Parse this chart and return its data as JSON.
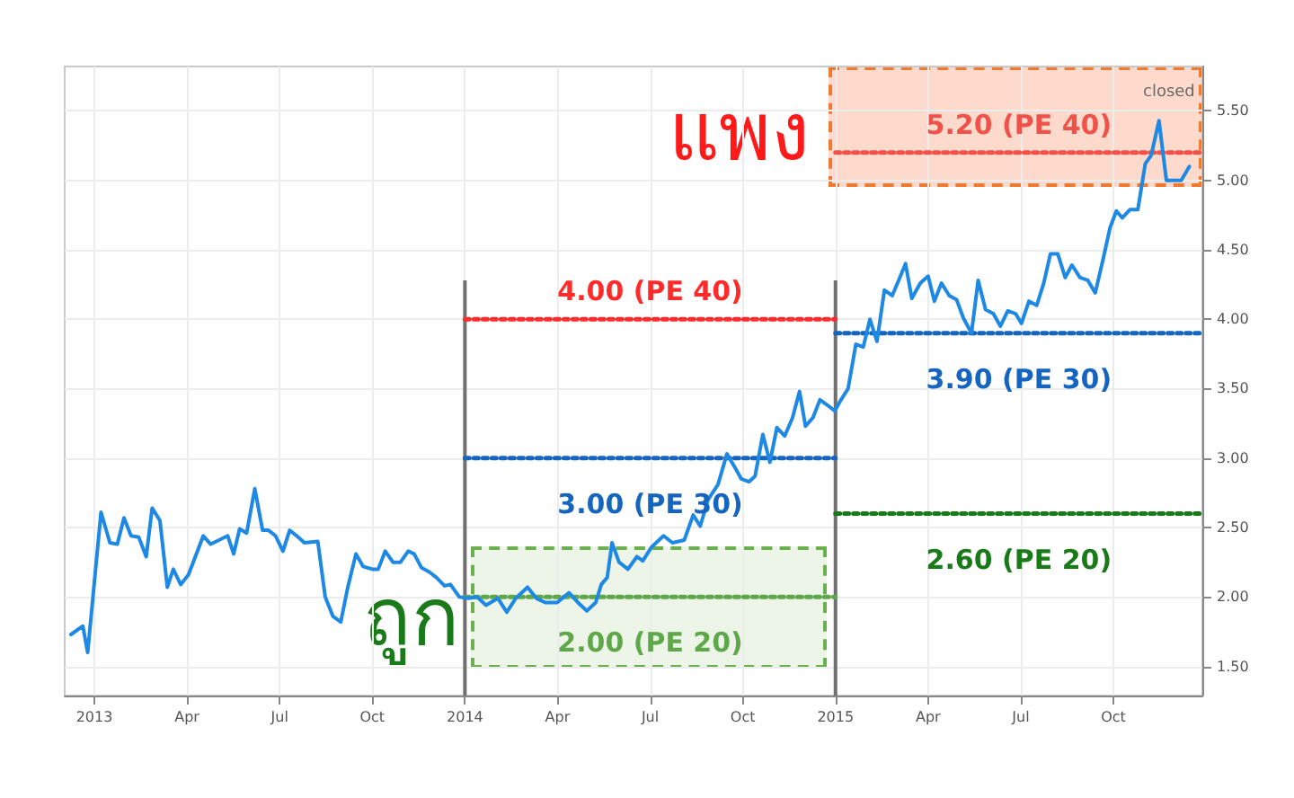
{
  "chart_data": {
    "type": "line",
    "annotations": [
      "แพง",
      "ถูก",
      "closed"
    ],
    "xlim": [
      2012.92,
      2015.99
    ],
    "xticks": [
      {
        "value": 2013,
        "label": "2013"
      },
      {
        "value": 2013.25,
        "label": "Apr"
      },
      {
        "value": 2013.5,
        "label": "Jul"
      },
      {
        "value": 2013.75,
        "label": "Oct"
      },
      {
        "value": 2014,
        "label": "2014"
      },
      {
        "value": 2014.25,
        "label": "Apr"
      },
      {
        "value": 2014.5,
        "label": "Jul"
      },
      {
        "value": 2014.75,
        "label": "Oct"
      },
      {
        "value": 2015,
        "label": "2015"
      },
      {
        "value": 2015.25,
        "label": "Apr"
      },
      {
        "value": 2015.5,
        "label": "Jul"
      },
      {
        "value": 2015.75,
        "label": "Oct"
      }
    ],
    "ylim": [
      1.29,
      5.82
    ],
    "yticks": [
      {
        "value": 1.5,
        "label": "1.50"
      },
      {
        "value": 2,
        "label": "2.00"
      },
      {
        "value": 2.5,
        "label": "2.50"
      },
      {
        "value": 3,
        "label": "3.00"
      },
      {
        "value": 3.5,
        "label": "3.50"
      },
      {
        "value": 4,
        "label": "4.00"
      },
      {
        "value": 4.5,
        "label": "4.50"
      },
      {
        "value": 5,
        "label": "5.00"
      },
      {
        "value": 5.5,
        "label": "5.50"
      }
    ],
    "grid": true,
    "marker": "none",
    "legend": false,
    "ref_lines": [
      {
        "axis": "x",
        "value": 2014,
        "color": "#707070"
      },
      {
        "axis": "x",
        "value": 2015,
        "color": "#707070"
      }
    ],
    "series": [
      {
        "color": "#1e88e5",
        "line_style": "solid",
        "x": [
          2012.937,
          2012.969,
          2012.982,
          2013.018,
          2013.042,
          2013.062,
          2013.08,
          2013.099,
          2013.12,
          2013.14,
          2013.156,
          2013.177,
          2013.197,
          2013.213,
          2013.233,
          2013.254,
          2013.294,
          2013.314,
          2013.36,
          2013.376,
          2013.392,
          2013.411,
          2013.433,
          2013.454,
          2013.47,
          2013.489,
          2013.509,
          2013.527,
          2013.546,
          2013.567,
          2013.603,
          2013.623,
          2013.644,
          2013.665,
          2013.684,
          2013.706,
          2013.725,
          2013.75,
          2013.766,
          2013.785,
          2013.806,
          2013.826,
          2013.847,
          2013.863,
          2013.883,
          2013.904,
          2013.923,
          2013.945,
          2013.961,
          2013.985,
          2014.01,
          2014.033,
          2014.057,
          2014.089,
          2014.113,
          2014.137,
          2014.169,
          2014.193,
          2014.217,
          2014.249,
          2014.281,
          2014.305,
          2014.329,
          2014.353,
          2014.368,
          2014.384,
          2014.397,
          2014.416,
          2014.44,
          2014.464,
          2014.48,
          2014.504,
          2014.536,
          2014.56,
          2014.592,
          2014.616,
          2014.635,
          2014.656,
          2014.683,
          2014.707,
          2014.727,
          2014.746,
          2014.767,
          2014.783,
          2014.804,
          2014.823,
          2014.842,
          2014.863,
          2014.884,
          2014.903,
          2014.919,
          2014.939,
          2014.958,
          2014.979,
          2014.998,
          2015.015,
          2015.034,
          2015.055,
          2015.075,
          2015.093,
          2015.112,
          2015.132,
          2015.153,
          2015.169,
          2015.189,
          2015.206,
          2015.229,
          2015.25,
          2015.267,
          2015.286,
          2015.307,
          2015.327,
          2015.345,
          2015.367,
          2015.385,
          2015.405,
          2015.426,
          2015.445,
          2015.465,
          2015.486,
          2015.502,
          2015.522,
          2015.543,
          2015.562,
          2015.58,
          2015.6,
          2015.62,
          2015.638,
          2015.66,
          2015.681,
          2015.701,
          2015.722,
          2015.741,
          2015.758,
          2015.774,
          2015.795,
          2015.816,
          2015.836,
          2015.852,
          2015.873,
          2015.893,
          2015.914,
          2015.933,
          2015.955
        ],
        "values": [
          1.73,
          1.79,
          1.6,
          2.61,
          2.39,
          2.38,
          2.57,
          2.44,
          2.43,
          2.29,
          2.64,
          2.55,
          2.07,
          2.2,
          2.09,
          2.16,
          2.44,
          2.38,
          2.44,
          2.31,
          2.49,
          2.46,
          2.78,
          2.48,
          2.48,
          2.44,
          2.33,
          2.48,
          2.44,
          2.39,
          2.4,
          2.0,
          1.86,
          1.82,
          2.07,
          2.31,
          2.22,
          2.2,
          2.2,
          2.33,
          2.25,
          2.25,
          2.33,
          2.31,
          2.21,
          2.18,
          2.14,
          2.08,
          2.09,
          2.0,
          1.99,
          2.0,
          1.94,
          1.99,
          1.89,
          1.99,
          2.07,
          1.99,
          1.96,
          1.96,
          2.03,
          1.96,
          1.9,
          1.96,
          2.09,
          2.14,
          2.39,
          2.25,
          2.2,
          2.29,
          2.26,
          2.36,
          2.44,
          2.39,
          2.41,
          2.59,
          2.51,
          2.7,
          2.81,
          3.03,
          2.94,
          2.85,
          2.83,
          2.87,
          3.17,
          2.97,
          3.22,
          3.16,
          3.29,
          3.48,
          3.23,
          3.29,
          3.42,
          3.38,
          3.34,
          3.42,
          3.5,
          3.82,
          3.8,
          4.0,
          3.84,
          4.21,
          4.17,
          4.27,
          4.4,
          4.15,
          4.26,
          4.31,
          4.13,
          4.26,
          4.17,
          4.14,
          4.01,
          3.9,
          4.28,
          4.07,
          4.04,
          3.95,
          4.06,
          4.04,
          3.97,
          4.13,
          4.1,
          4.26,
          4.47,
          4.47,
          4.3,
          4.39,
          4.3,
          4.28,
          4.19,
          4.43,
          4.66,
          4.78,
          4.73,
          4.79,
          4.79,
          5.12,
          5.18,
          5.43,
          5.0,
          5.0,
          5.0,
          5.1
        ]
      },
      {
        "name": "4.00 (PE 40)",
        "color": "#ff2a2a",
        "line_style": "dotted",
        "x": [
          2014,
          2015
        ],
        "values": [
          4.0,
          4.0
        ]
      },
      {
        "name": "3.00 (PE 30)",
        "color": "#1565c0",
        "line_style": "dotted",
        "x": [
          2014,
          2015
        ],
        "values": [
          3.0,
          3.0
        ]
      },
      {
        "name": "2.00 (PE 20)",
        "color": "#5fa84a",
        "line_style": "dotted",
        "x": [
          2014,
          2015
        ],
        "values": [
          2.0,
          2.0
        ]
      },
      {
        "name": "5.20 (PE 40)",
        "color": "#f0524a",
        "line_style": "dotted",
        "x": [
          2015,
          2015.99
        ],
        "values": [
          5.2,
          5.2
        ]
      },
      {
        "name": "3.90 (PE 30)",
        "color": "#1565c0",
        "line_style": "dotted",
        "x": [
          2015,
          2015.99
        ],
        "values": [
          3.9,
          3.9
        ]
      },
      {
        "name": "2.60 (PE 20)",
        "color": "#1a7a1a",
        "line_style": "dotted",
        "x": [
          2015,
          2015.99
        ],
        "values": [
          2.6,
          2.6
        ]
      }
    ]
  }
}
